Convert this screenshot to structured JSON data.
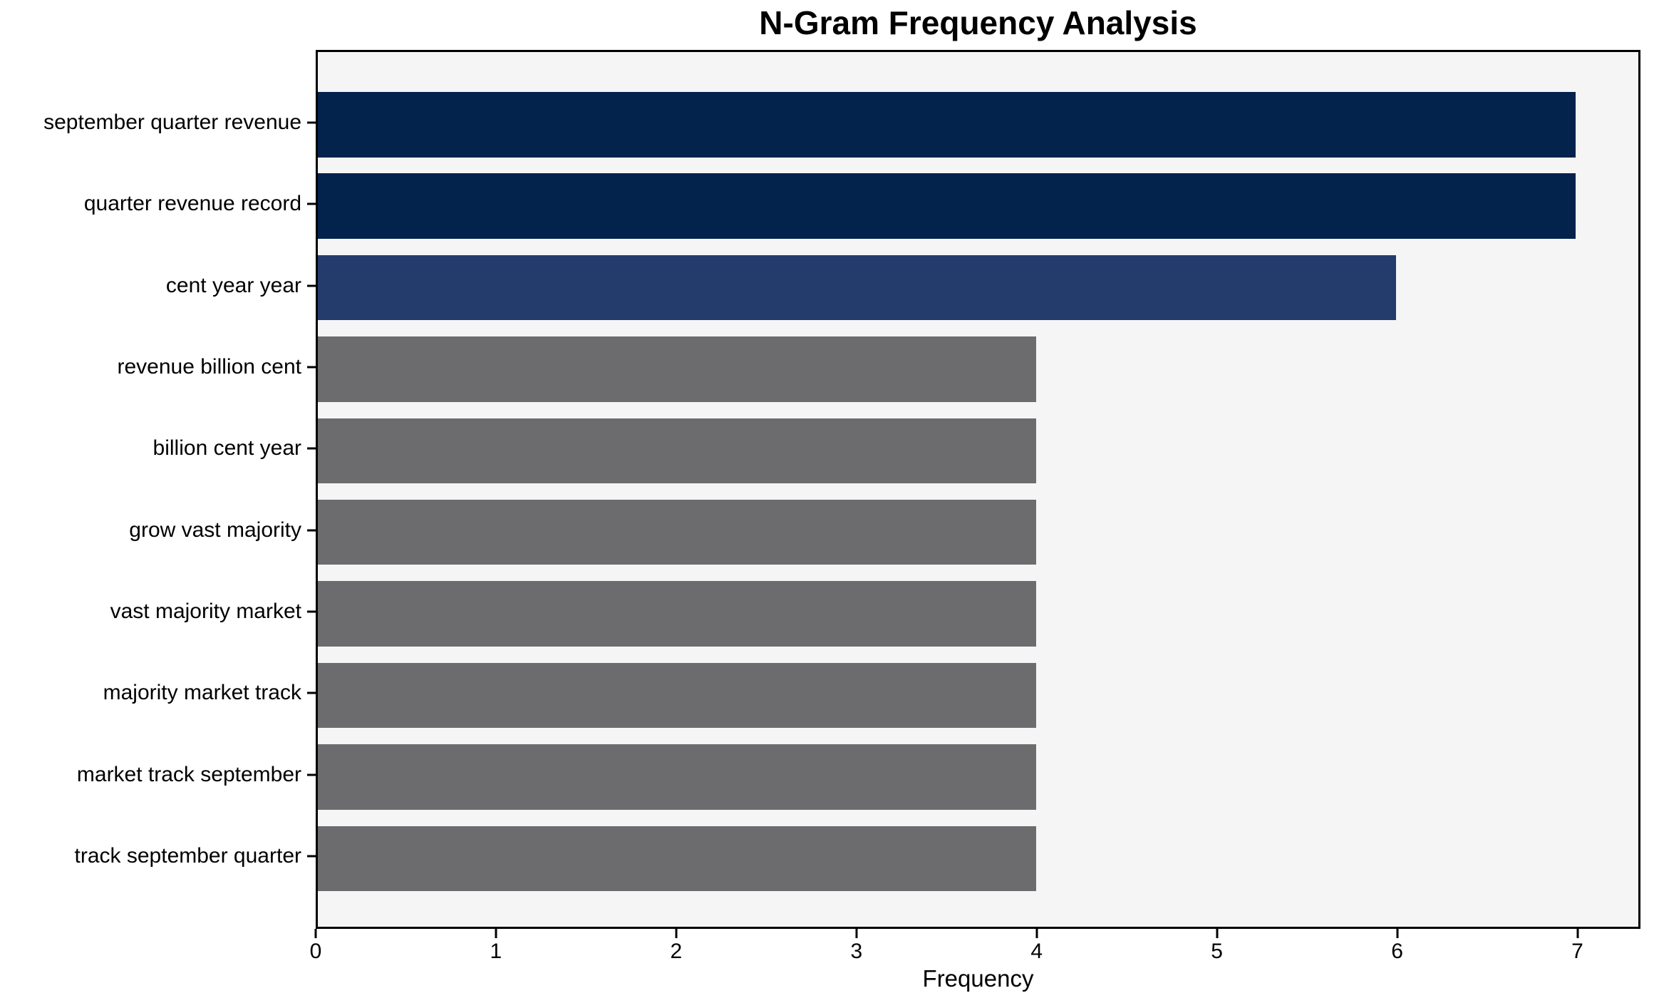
{
  "chart_data": {
    "type": "bar",
    "orientation": "horizontal",
    "title": "N-Gram Frequency Analysis",
    "xlabel": "Frequency",
    "ylabel": "",
    "categories": [
      "september quarter revenue",
      "quarter revenue record",
      "cent year year",
      "revenue billion cent",
      "billion cent year",
      "grow vast majority",
      "vast majority market",
      "majority market track",
      "market track september",
      "track september quarter"
    ],
    "values": [
      7,
      7,
      6,
      4,
      4,
      4,
      4,
      4,
      4,
      4
    ],
    "bar_colors": [
      "#03224c",
      "#03224c",
      "#243c6c",
      "#6c6c6e",
      "#6c6c6e",
      "#6c6c6e",
      "#6c6c6e",
      "#6c6c6e",
      "#6c6c6e",
      "#6c6c6e"
    ],
    "xlim": [
      0,
      7.35
    ],
    "xticks": [
      0,
      1,
      2,
      3,
      4,
      5,
      6,
      7
    ],
    "grid": false,
    "legend_position": "none",
    "plot_background": "#f5f5f6",
    "figure_background": "#ffffff",
    "axis_color": "#000000"
  }
}
